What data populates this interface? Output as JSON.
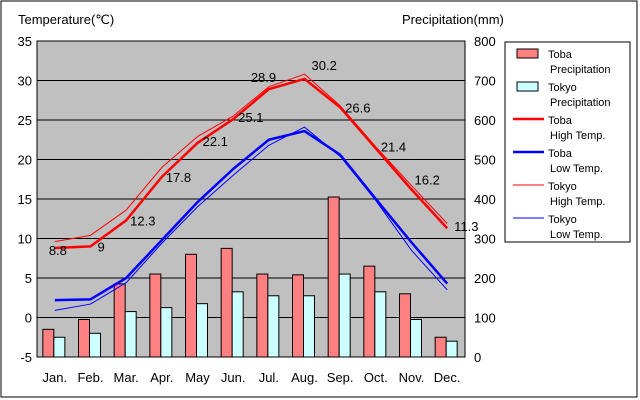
{
  "chart_data": {
    "type": "bar",
    "left_axis_title": "Temperature(℃)",
    "right_axis_title": "Precipitation(mm)",
    "categories": [
      "Jan.",
      "Feb.",
      "Mar.",
      "Apr.",
      "May",
      "Jun.",
      "Jul.",
      "Aug.",
      "Sep.",
      "Oct.",
      "Nov.",
      "Dec."
    ],
    "temp_axis": {
      "min": -5,
      "max": 35,
      "step": 5,
      "ticks": [
        "35",
        "30",
        "25",
        "20",
        "15",
        "10",
        "5",
        "0",
        "-5"
      ]
    },
    "precip_axis": {
      "min": 0,
      "max": 800,
      "step": 100,
      "ticks": [
        "800",
        "700",
        "600",
        "500",
        "400",
        "300",
        "200",
        "100",
        "0"
      ]
    },
    "grid": true,
    "legend_position": "right",
    "colors": {
      "plot_bg": "#c0c0c0",
      "toba_precip": "#ff8080",
      "tokyo_precip": "#ccffff",
      "toba_high": "#ff0000",
      "toba_low": "#0000ff",
      "tokyo_high": "#ff0000",
      "tokyo_low": "#0000ff"
    },
    "bar_series": [
      {
        "name": "Toba Precipitation",
        "key": "toba_precip",
        "unit": "mm",
        "values": [
          70,
          95,
          185,
          210,
          260,
          275,
          210,
          208,
          405,
          230,
          160,
          50
        ]
      },
      {
        "name": "Tokyo Precipitation",
        "key": "tokyo_precip",
        "unit": "mm",
        "values": [
          50,
          60,
          115,
          125,
          135,
          165,
          155,
          155,
          210,
          165,
          95,
          40
        ]
      }
    ],
    "line_series": [
      {
        "name": "Toba High Temp.",
        "key": "toba_high",
        "width": 2.5,
        "values": [
          8.8,
          9.0,
          12.3,
          17.8,
          22.1,
          25.1,
          28.9,
          30.2,
          26.6,
          21.4,
          16.2,
          11.3
        ],
        "labels": [
          "8.8",
          "9",
          "12.3",
          "17.8",
          "22.1",
          "25.1",
          "28.9",
          "30.2",
          "26.6",
          "21.4",
          "16.2",
          "11.3"
        ]
      },
      {
        "name": "Toba Low Temp.",
        "key": "toba_low",
        "width": 2.5,
        "values": [
          2.2,
          2.3,
          5.0,
          9.8,
          14.6,
          18.8,
          22.5,
          23.6,
          20.6,
          15.0,
          9.5,
          4.3
        ]
      },
      {
        "name": "Tokyo High Temp.",
        "key": "tokyo_high",
        "width": 1,
        "values": [
          9.6,
          10.4,
          13.6,
          19.0,
          22.9,
          25.5,
          29.2,
          30.8,
          26.8,
          21.6,
          16.7,
          11.9
        ]
      },
      {
        "name": "Tokyo Low Temp.",
        "key": "tokyo_low",
        "width": 1,
        "values": [
          0.9,
          1.7,
          4.4,
          9.4,
          14.0,
          18.0,
          21.8,
          24.1,
          20.4,
          14.8,
          8.5,
          3.5
        ]
      }
    ],
    "legend": [
      {
        "key": "toba_precip",
        "kind": "box",
        "line1": "Toba",
        "line2": "Precipitation"
      },
      {
        "key": "tokyo_precip",
        "kind": "box",
        "line1": "Tokyo",
        "line2": "Precipitation"
      },
      {
        "key": "toba_high",
        "kind": "line",
        "thick": true,
        "line1": "Toba",
        "line2": "High Temp."
      },
      {
        "key": "toba_low",
        "kind": "line",
        "thick": true,
        "line1": "Toba",
        "line2": "Low Temp."
      },
      {
        "key": "tokyo_high",
        "kind": "line",
        "thick": false,
        "line1": "Tokyo",
        "line2": "High Temp."
      },
      {
        "key": "tokyo_low",
        "kind": "line",
        "thick": false,
        "line1": "Tokyo",
        "line2": "Low Temp."
      }
    ]
  }
}
